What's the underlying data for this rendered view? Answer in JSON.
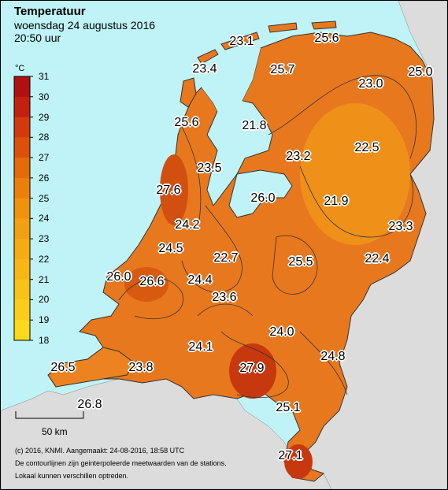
{
  "header": {
    "title": "Temperatuur",
    "date": "woensdag 24 augustus 2016",
    "time": "20:50 uur"
  },
  "legend": {
    "unit": "°C",
    "ticks": [
      "31",
      "30",
      "29",
      "28",
      "27",
      "26",
      "25",
      "24",
      "23",
      "22",
      "21",
      "20",
      "19",
      "18"
    ],
    "colors": [
      "#b01010",
      "#c42010",
      "#d23a0c",
      "#dc500a",
      "#e56a0a",
      "#ec7f0c",
      "#f0920f",
      "#f39f12",
      "#f5ab14",
      "#f7b616",
      "#f9c218",
      "#fbcd1a",
      "#fdd81c"
    ]
  },
  "scalebar": {
    "label": "50 km"
  },
  "footer": {
    "line1": "(c) 2016, KNMI. Aangemaakt: 24-08-2016, 18:58 UTC",
    "line2": "De contourlijnen zijn geinterpoleerde meetwaarden van de stations.",
    "line3": "Lokaal kunnen verschillen optreden."
  },
  "stations": [
    {
      "value": "23.1"
    },
    {
      "value": "25.6"
    },
    {
      "value": "23.4"
    },
    {
      "value": "25.7"
    },
    {
      "value": "23.0"
    },
    {
      "value": "25.0"
    },
    {
      "value": "25.6"
    },
    {
      "value": "21.8"
    },
    {
      "value": "23.2"
    },
    {
      "value": "22.5"
    },
    {
      "value": "23.5"
    },
    {
      "value": "27.6"
    },
    {
      "value": "26.0"
    },
    {
      "value": "21.9"
    },
    {
      "value": "24.2"
    },
    {
      "value": "23.3"
    },
    {
      "value": "24.5"
    },
    {
      "value": "22.7"
    },
    {
      "value": "25.5"
    },
    {
      "value": "22.4"
    },
    {
      "value": "26.0"
    },
    {
      "value": "26.6"
    },
    {
      "value": "24.4"
    },
    {
      "value": "23.6"
    },
    {
      "value": "24.0"
    },
    {
      "value": "24.1"
    },
    {
      "value": "24.8"
    },
    {
      "value": "27.9"
    },
    {
      "value": "26.5"
    },
    {
      "value": "23.8"
    },
    {
      "value": "25.1"
    },
    {
      "value": "26.8"
    },
    {
      "value": "27.1"
    }
  ]
}
